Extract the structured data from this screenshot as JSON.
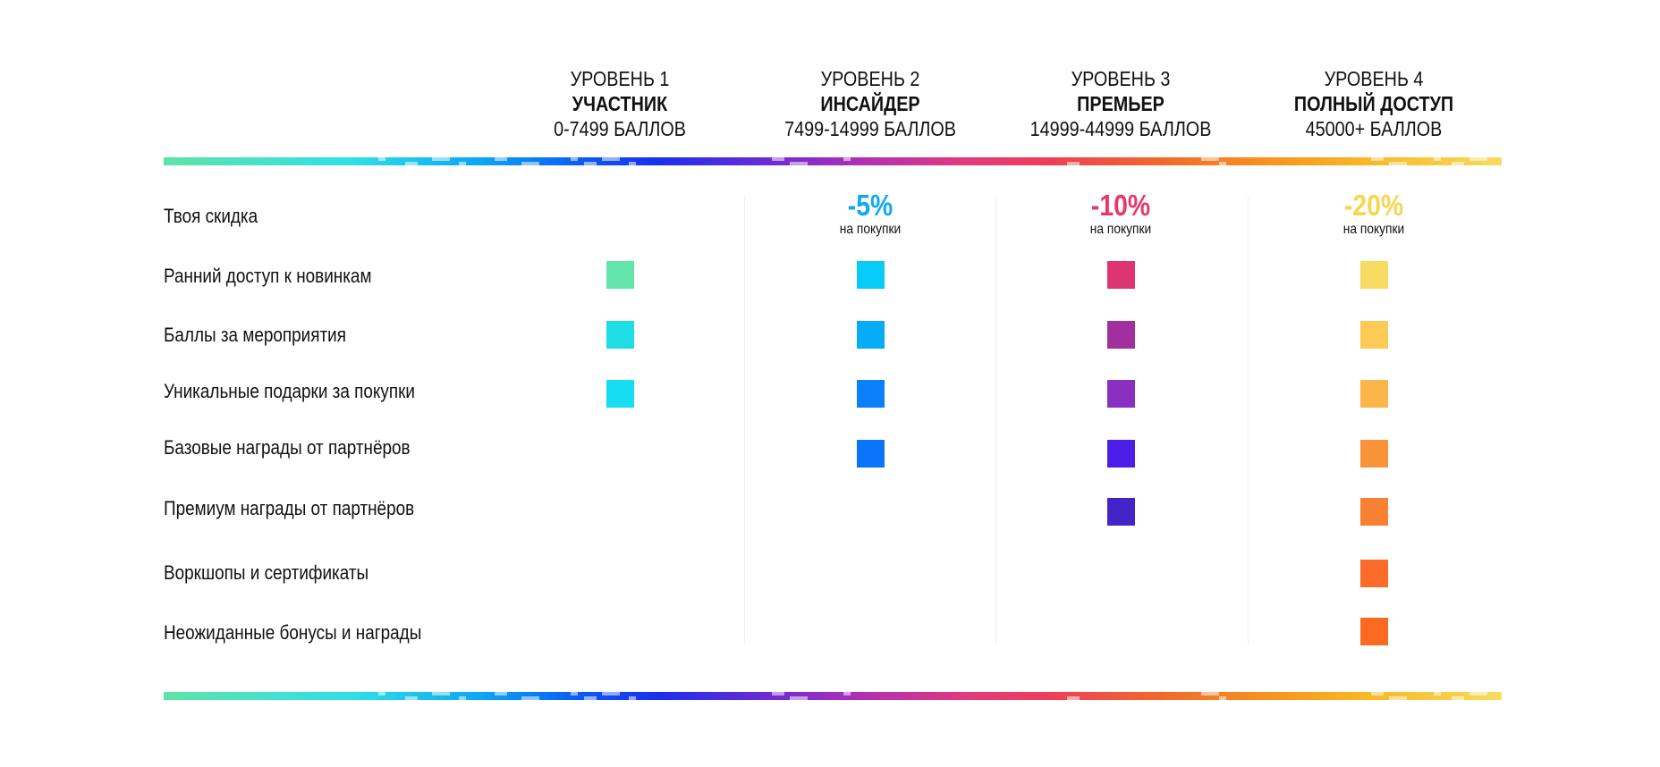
{
  "tiers": [
    {
      "level": "УРОВЕНЬ 1",
      "name": "УЧАСТНИК",
      "points": "0-7499 БАЛЛОВ"
    },
    {
      "level": "УРОВЕНЬ 2",
      "name": "ИНСАЙДЕР",
      "points": "7499-14999 БАЛЛОВ"
    },
    {
      "level": "УРОВЕНЬ 3",
      "name": "ПРЕМЬЕР",
      "points": "14999-44999 БАЛЛОВ"
    },
    {
      "level": "УРОВЕНЬ 4",
      "name": "ПОЛНЫЙ ДОСТУП",
      "points": "45000+ БАЛЛОВ"
    }
  ],
  "discount": {
    "label": "Твоя скидка",
    "tier2": {
      "value": "-5%",
      "note": "на покупки",
      "color": "#0fa8f4"
    },
    "tier3": {
      "value": "-10%",
      "note": "на покупки",
      "color": "#e7386a"
    },
    "tier4": {
      "value": "-20%",
      "note": "на покупки",
      "color": "#f7d64f"
    }
  },
  "features": [
    {
      "label": "Ранний доступ к новинкам",
      "tiers": [
        {
          "on": true,
          "color": "#63e4aa"
        },
        {
          "on": true,
          "color": "#07ccf9"
        },
        {
          "on": true,
          "color": "#dd3570"
        },
        {
          "on": true,
          "color": "#f8dc62"
        }
      ]
    },
    {
      "label": "Баллы за мероприятия",
      "tiers": [
        {
          "on": true,
          "color": "#1edde4"
        },
        {
          "on": true,
          "color": "#05adf9"
        },
        {
          "on": true,
          "color": "#a1309e"
        },
        {
          "on": true,
          "color": "#fbcb55"
        }
      ]
    },
    {
      "label": "Уникальные подарки за покупки",
      "tiers": [
        {
          "on": true,
          "color": "#17ddf1"
        },
        {
          "on": true,
          "color": "#0a80fb"
        },
        {
          "on": true,
          "color": "#8830c2"
        },
        {
          "on": true,
          "color": "#fbb548"
        }
      ]
    },
    {
      "label": "Базовые награды от партнёров",
      "tiers": [
        {
          "on": false
        },
        {
          "on": true,
          "color": "#0a75f9"
        },
        {
          "on": true,
          "color": "#4b1ee8"
        },
        {
          "on": true,
          "color": "#f8933a"
        }
      ]
    },
    {
      "label": "Премиум награды от партнёров",
      "tiers": [
        {
          "on": false
        },
        {
          "on": false
        },
        {
          "on": true,
          "color": "#4324c9"
        },
        {
          "on": true,
          "color": "#f88032"
        }
      ]
    },
    {
      "label": "Воркшопы и сертификаты",
      "tiers": [
        {
          "on": false
        },
        {
          "on": false
        },
        {
          "on": false
        },
        {
          "on": true,
          "color": "#fb6c28"
        }
      ]
    },
    {
      "label": "Неожиданные бонусы и награды",
      "tiers": [
        {
          "on": false
        },
        {
          "on": false
        },
        {
          "on": false
        },
        {
          "on": true,
          "color": "#fa6b21"
        }
      ]
    }
  ]
}
